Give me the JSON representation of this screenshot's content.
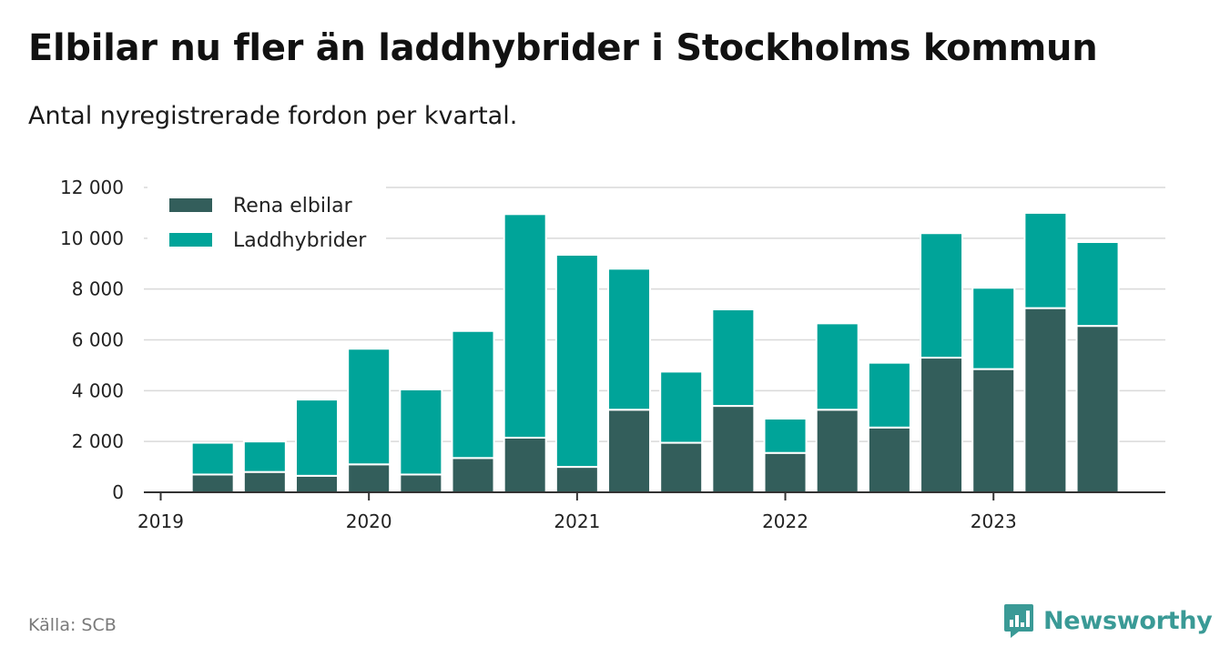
{
  "title": "Elbilar nu fler än laddhybrider i Stockholms kommun",
  "subtitle": "Antal nyregistrerade fordon per kvartal.",
  "source": "Källa: SCB",
  "brand": "Newsworthy",
  "colors": {
    "rena_elbilar": "#335e5b",
    "laddhybrider": "#00a499",
    "brand": "#3a9a96"
  },
  "chart_data": {
    "type": "bar",
    "stacked": true,
    "title": "Elbilar nu fler än laddhybrider i Stockholms kommun",
    "subtitle": "Antal nyregistrerade fordon per kvartal.",
    "xlabel": "",
    "ylabel": "",
    "ylim": [
      0,
      12000
    ],
    "yticks": [
      0,
      2000,
      4000,
      6000,
      8000,
      10000,
      12000
    ],
    "ytick_labels": [
      "0",
      "2 000",
      "4 000",
      "6 000",
      "8 000",
      "10 000",
      "12 000"
    ],
    "xticks": [
      "2019",
      "2020",
      "2021",
      "2022",
      "2023"
    ],
    "legend_position": "top-left",
    "grid": true,
    "categories": [
      "2019 Q2",
      "2019 Q3",
      "2019 Q4",
      "2020 Q1",
      "2020 Q2",
      "2020 Q3",
      "2020 Q4",
      "2021 Q1",
      "2021 Q2",
      "2021 Q3",
      "2021 Q4",
      "2022 Q1",
      "2022 Q2",
      "2022 Q3",
      "2022 Q4",
      "2023 Q1",
      "2023 Q2",
      "2023 Q3"
    ],
    "series": [
      {
        "name": "Rena elbilar",
        "values": [
          700,
          800,
          650,
          1100,
          700,
          1350,
          2150,
          1000,
          3250,
          1950,
          3400,
          1550,
          3250,
          2550,
          5300,
          4850,
          7250,
          6550
        ]
      },
      {
        "name": "Laddhybrider",
        "values": [
          1250,
          1200,
          3000,
          4550,
          3350,
          5000,
          8800,
          8350,
          5550,
          2800,
          3800,
          1350,
          3400,
          2550,
          4900,
          3200,
          3750,
          3300
        ]
      }
    ]
  }
}
